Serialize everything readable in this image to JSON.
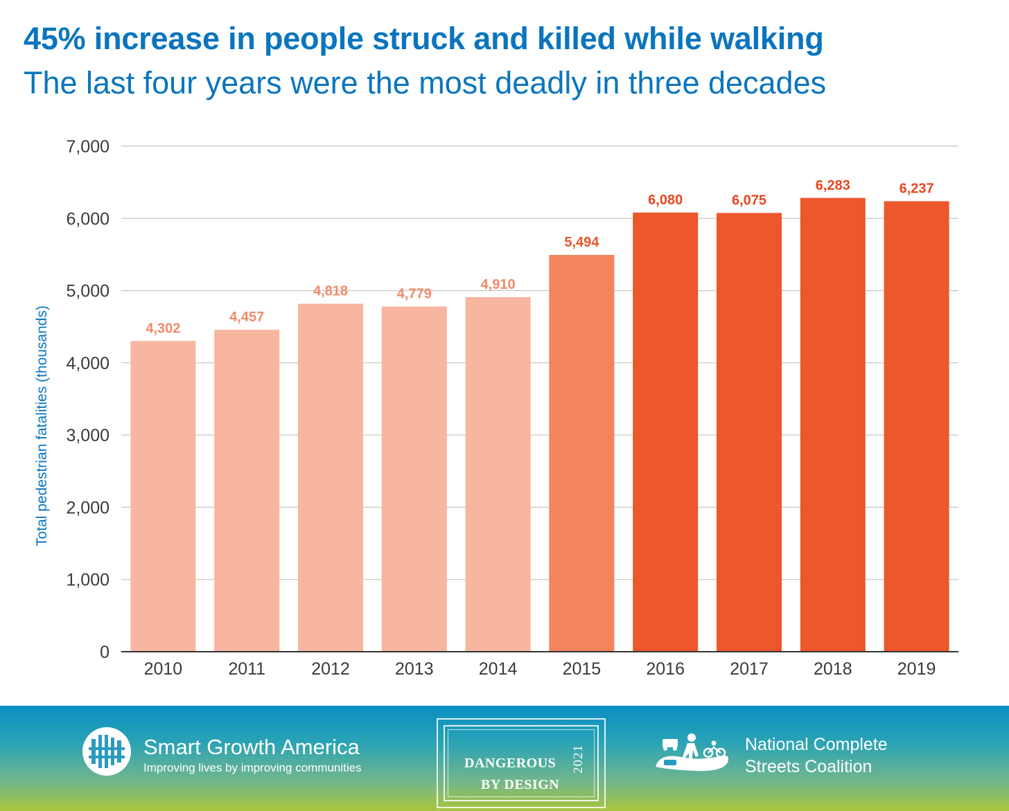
{
  "header": {
    "title": "45% increase in people struck and killed while walking",
    "subtitle": "The last four years were the most deadly in three decades"
  },
  "chart_data": {
    "type": "bar",
    "categories": [
      "2010",
      "2011",
      "2012",
      "2013",
      "2014",
      "2015",
      "2016",
      "2017",
      "2018",
      "2019"
    ],
    "values": [
      4302,
      4457,
      4818,
      4779,
      4910,
      5494,
      6080,
      6075,
      6283,
      6237
    ],
    "value_labels": [
      "4,302",
      "4,457",
      "4,818",
      "4,779",
      "4,910",
      "5,494",
      "6,080",
      "6,075",
      "6,283",
      "6,237"
    ],
    "ylabel": "Total pedestrian fatalities (thousands)",
    "xlabel": "",
    "ylim": [
      0,
      7000
    ],
    "yticks": [
      0,
      1000,
      2000,
      3000,
      4000,
      5000,
      6000,
      7000
    ],
    "ytick_labels": [
      "0",
      "1,000",
      "2,000",
      "3,000",
      "4,000",
      "5,000",
      "6,000",
      "7,000"
    ],
    "grid": true,
    "colors": {
      "light": "#f8b5a0",
      "medium": "#f3845d",
      "dark": "#ec572b",
      "label_light": "#f08a6a",
      "label_medium": "#e9552a",
      "label_dark": "#e8461f",
      "grid": "#c9c9bf",
      "axis": "#333333"
    },
    "bar_shades": [
      "light",
      "light",
      "light",
      "light",
      "light",
      "medium",
      "dark",
      "dark",
      "dark",
      "dark"
    ]
  },
  "footer": {
    "sga_name": "Smart Growth America",
    "sga_tagline": "Improving lives by improving communities",
    "dbd_line1": "DANGEROUS",
    "dbd_line2": "BY DESIGN",
    "dbd_year": "2021",
    "ncs_line1": "National Complete",
    "ncs_line2": "Streets Coalition",
    "sga_logo_icon": "building-grid-icon",
    "ncs_logo_icon": "street-people-icon"
  }
}
